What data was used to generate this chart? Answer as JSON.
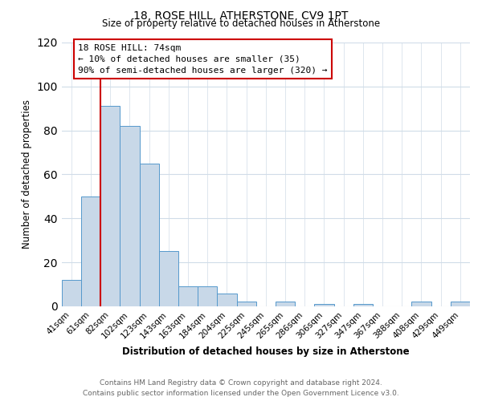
{
  "title": "18, ROSE HILL, ATHERSTONE, CV9 1PT",
  "subtitle": "Size of property relative to detached houses in Atherstone",
  "xlabel": "Distribution of detached houses by size in Atherstone",
  "ylabel": "Number of detached properties",
  "bar_labels": [
    "41sqm",
    "61sqm",
    "82sqm",
    "102sqm",
    "123sqm",
    "143sqm",
    "163sqm",
    "184sqm",
    "204sqm",
    "225sqm",
    "245sqm",
    "265sqm",
    "286sqm",
    "306sqm",
    "327sqm",
    "347sqm",
    "367sqm",
    "388sqm",
    "408sqm",
    "429sqm",
    "449sqm"
  ],
  "bar_heights": [
    12,
    50,
    91,
    82,
    65,
    25,
    9,
    9,
    6,
    2,
    0,
    2,
    0,
    1,
    0,
    1,
    0,
    0,
    2,
    0,
    2
  ],
  "bar_color": "#c8d8e8",
  "bar_edgecolor": "#5599cc",
  "vline_x_index": 1.5,
  "vline_color": "#cc0000",
  "ylim": [
    0,
    120
  ],
  "yticks": [
    0,
    20,
    40,
    60,
    80,
    100,
    120
  ],
  "annotation_title": "18 ROSE HILL: 74sqm",
  "annotation_line1": "← 10% of detached houses are smaller (35)",
  "annotation_line2": "90% of semi-detached houses are larger (320) →",
  "annotation_box_color": "#ffffff",
  "annotation_box_edgecolor": "#cc0000",
  "footer_line1": "Contains HM Land Registry data © Crown copyright and database right 2024.",
  "footer_line2": "Contains public sector information licensed under the Open Government Licence v3.0.",
  "background_color": "#ffffff",
  "grid_color": "#d0dce8"
}
